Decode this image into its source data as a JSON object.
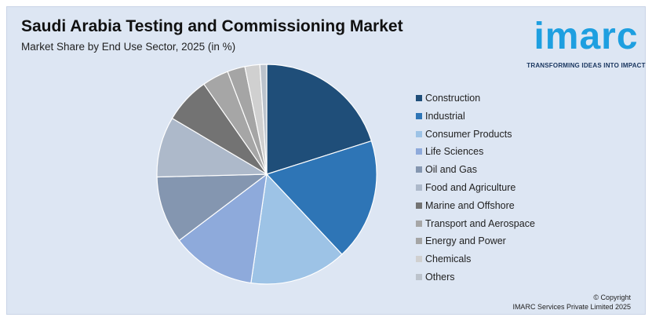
{
  "header": {
    "title": "Saudi Arabia Testing and Commissioning Market",
    "subtitle": "Market Share by End Use Sector, 2025 (in %)"
  },
  "logo": {
    "word": "imarc",
    "tagline": "TRANSFORMING IDEAS INTO IMPACT",
    "color": "#1e9fe0"
  },
  "chart_data": {
    "type": "pie",
    "categories": [
      "Construction",
      "Industrial",
      "Consumer Products",
      "Life Sciences",
      "Oil and Gas",
      "Food and Agriculture",
      "Marine and Offshore",
      "Transport and Aerospace",
      "Energy and Power",
      "Chemicals",
      "Others"
    ],
    "values": [
      20.1,
      17.9,
      14.3,
      12.4,
      9.9,
      8.9,
      6.8,
      3.9,
      2.6,
      2.2,
      1.0
    ],
    "colors": [
      "#1f4e79",
      "#2e75b6",
      "#9dc3e6",
      "#8eaadb",
      "#8496b0",
      "#adb9ca",
      "#737373",
      "#a6a6a6",
      "#a5a5a5",
      "#d0d0d0",
      "#bcc3cc"
    ],
    "legend_position": "right",
    "start_angle": "top, clockwise"
  },
  "footer": {
    "copyright_line1": "© Copyright",
    "copyright_line2": "IMARC Services Private Limited 2025"
  }
}
